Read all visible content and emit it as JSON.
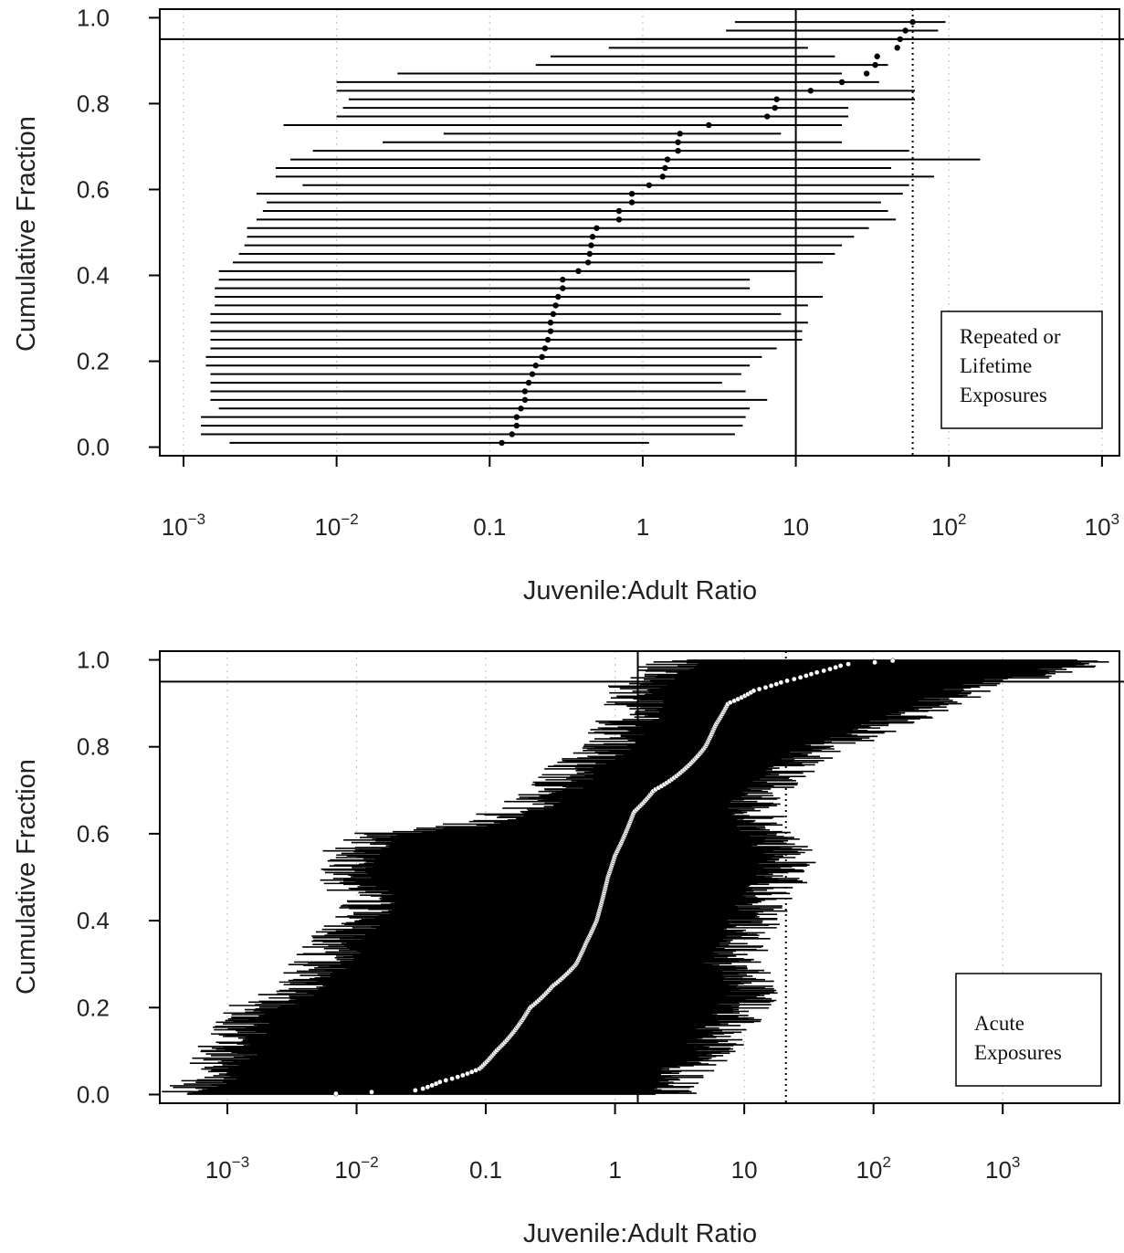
{
  "chart_data": [
    {
      "type": "errorbar-dot",
      "ylabel": "Cumulative Fraction",
      "xlabel": "Juvenile:Adult Ratio",
      "xscale": "log",
      "xlim": [
        0.0007,
        1300
      ],
      "ylim": [
        -0.02,
        1.02
      ],
      "yticks": [
        0.0,
        0.2,
        0.4,
        0.6,
        0.8,
        1.0
      ],
      "ytick_labels": [
        "0.0",
        "0.2",
        "0.4",
        "0.6",
        "0.8",
        "1.0"
      ],
      "xticks": [
        0.001,
        0.01,
        0.1,
        1,
        10,
        100,
        1000
      ],
      "xtick_labels": [
        {
          "base": "10",
          "exp": "−3"
        },
        {
          "base": "10",
          "exp": "−2"
        },
        {
          "base": "0.1",
          "exp": ""
        },
        {
          "base": "1",
          "exp": ""
        },
        {
          "base": "10",
          "exp": ""
        },
        {
          "base": "10",
          "exp": "2"
        },
        {
          "base": "10",
          "exp": "3"
        }
      ],
      "reference_lines": {
        "vertical_solid": 10,
        "vertical_dotted": 58,
        "horizontal_solid": 0.95
      },
      "grid": "vertical dotted at decades",
      "legend_text": [
        "Repeated or",
        "Lifetime",
        "Exposures"
      ],
      "legend_placement": "bottom-right",
      "marker_color": "#000000",
      "series": {
        "y": [
          0.01,
          0.03,
          0.05,
          0.07,
          0.09,
          0.11,
          0.13,
          0.15,
          0.17,
          0.19,
          0.21,
          0.23,
          0.25,
          0.27,
          0.29,
          0.31,
          0.33,
          0.35,
          0.37,
          0.39,
          0.41,
          0.43,
          0.45,
          0.47,
          0.49,
          0.51,
          0.53,
          0.55,
          0.57,
          0.59,
          0.61,
          0.63,
          0.65,
          0.67,
          0.69,
          0.71,
          0.73,
          0.75,
          0.77,
          0.79,
          0.81,
          0.83,
          0.85,
          0.87,
          0.89,
          0.91,
          0.93,
          0.95,
          0.97,
          0.99
        ],
        "center": [
          0.12,
          0.14,
          0.15,
          0.15,
          0.16,
          0.17,
          0.17,
          0.18,
          0.19,
          0.2,
          0.22,
          0.23,
          0.24,
          0.25,
          0.25,
          0.26,
          0.27,
          0.28,
          0.3,
          0.3,
          0.38,
          0.44,
          0.45,
          0.46,
          0.47,
          0.5,
          0.7,
          0.7,
          0.85,
          0.85,
          1.1,
          1.35,
          1.4,
          1.45,
          1.7,
          1.7,
          1.75,
          2.7,
          6.5,
          7.3,
          7.5,
          12.5,
          20,
          29,
          33,
          34,
          46,
          48,
          52,
          58
        ],
        "low": [
          0.002,
          0.0013,
          0.0013,
          0.0013,
          0.0017,
          0.0015,
          0.0015,
          0.0015,
          0.0015,
          0.0014,
          0.0014,
          0.0015,
          0.0015,
          0.0015,
          0.0015,
          0.0015,
          0.0016,
          0.0016,
          0.0016,
          0.0017,
          0.0017,
          0.0021,
          0.0023,
          0.0025,
          0.0026,
          0.0026,
          0.003,
          0.0033,
          0.0035,
          0.003,
          0.006,
          0.004,
          0.004,
          0.005,
          0.007,
          0.02,
          0.05,
          0.0045,
          0.01,
          0.011,
          0.012,
          0.01,
          0.01,
          0.025,
          0.2,
          0.25,
          0.6,
          0.9,
          3.5,
          4.0
        ],
        "high": [
          1.1,
          4.0,
          4.5,
          4.7,
          5.0,
          6.5,
          4.7,
          3.3,
          4.4,
          5.0,
          6.0,
          7.5,
          11,
          11,
          12,
          8,
          12,
          15,
          5,
          5,
          10,
          15,
          18,
          20,
          24,
          30,
          45,
          40,
          36,
          50,
          55,
          80,
          42,
          160,
          55,
          20,
          8,
          20,
          22,
          22,
          60,
          60,
          35,
          20,
          40,
          18,
          12,
          55,
          85,
          95
        ]
      }
    },
    {
      "type": "errorbar-dot",
      "ylabel": "Cumulative Fraction",
      "xlabel": "Juvenile:Adult Ratio",
      "xscale": "log",
      "xlim": [
        0.0003,
        8000
      ],
      "ylim": [
        -0.02,
        1.02
      ],
      "yticks": [
        0.0,
        0.2,
        0.4,
        0.6,
        0.8,
        1.0
      ],
      "ytick_labels": [
        "0.0",
        "0.2",
        "0.4",
        "0.6",
        "0.8",
        "1.0"
      ],
      "xticks": [
        0.001,
        0.01,
        0.1,
        1,
        10,
        100,
        1000
      ],
      "xtick_labels": [
        {
          "base": "10",
          "exp": "−3"
        },
        {
          "base": "10",
          "exp": "−2"
        },
        {
          "base": "0.1",
          "exp": ""
        },
        {
          "base": "1",
          "exp": ""
        },
        {
          "base": "10",
          "exp": ""
        },
        {
          "base": "10",
          "exp": "2"
        },
        {
          "base": "10",
          "exp": "3"
        }
      ],
      "reference_lines": {
        "vertical_solid": 1.5,
        "vertical_dotted": 21,
        "horizontal_solid": 0.95
      },
      "grid": "vertical dotted at decades",
      "legend_text": [
        "Acute",
        "Exposures"
      ],
      "legend_placement": "bottom-right",
      "marker_color": "#ffffff",
      "median_curve": {
        "y": [
          0.0,
          0.005,
          0.01,
          0.03,
          0.06,
          0.1,
          0.15,
          0.2,
          0.25,
          0.3,
          0.35,
          0.4,
          0.45,
          0.5,
          0.55,
          0.6,
          0.65,
          0.7,
          0.75,
          0.8,
          0.85,
          0.9,
          0.93,
          0.95,
          0.97,
          0.99,
          1.0
        ],
        "x": [
          0.005,
          0.01,
          0.03,
          0.045,
          0.09,
          0.12,
          0.17,
          0.22,
          0.33,
          0.5,
          0.6,
          0.72,
          0.8,
          0.88,
          1.0,
          1.2,
          1.4,
          2.0,
          3.5,
          5.0,
          6.0,
          7.5,
          12,
          20,
          35,
          60,
          160
        ]
      },
      "spread_bounds": {
        "y": [
          0.0,
          0.05,
          0.1,
          0.15,
          0.2,
          0.25,
          0.3,
          0.35,
          0.4,
          0.45,
          0.5,
          0.55,
          0.6,
          0.65,
          0.7,
          0.75,
          0.8,
          0.85,
          0.9,
          0.95,
          1.0
        ],
        "low": [
          0.0004,
          0.0008,
          0.001,
          0.0012,
          0.0015,
          0.004,
          0.005,
          0.007,
          0.01,
          0.012,
          0.008,
          0.009,
          0.012,
          0.15,
          0.35,
          0.5,
          0.8,
          1.2,
          1.4,
          1.6,
          3.0
        ],
        "high": [
          2.5,
          3.5,
          5.5,
          7.0,
          10,
          12,
          8.0,
          10,
          12,
          15,
          20,
          22,
          15,
          12,
          14,
          25,
          40,
          120,
          300,
          700,
          5000
        ]
      }
    }
  ]
}
